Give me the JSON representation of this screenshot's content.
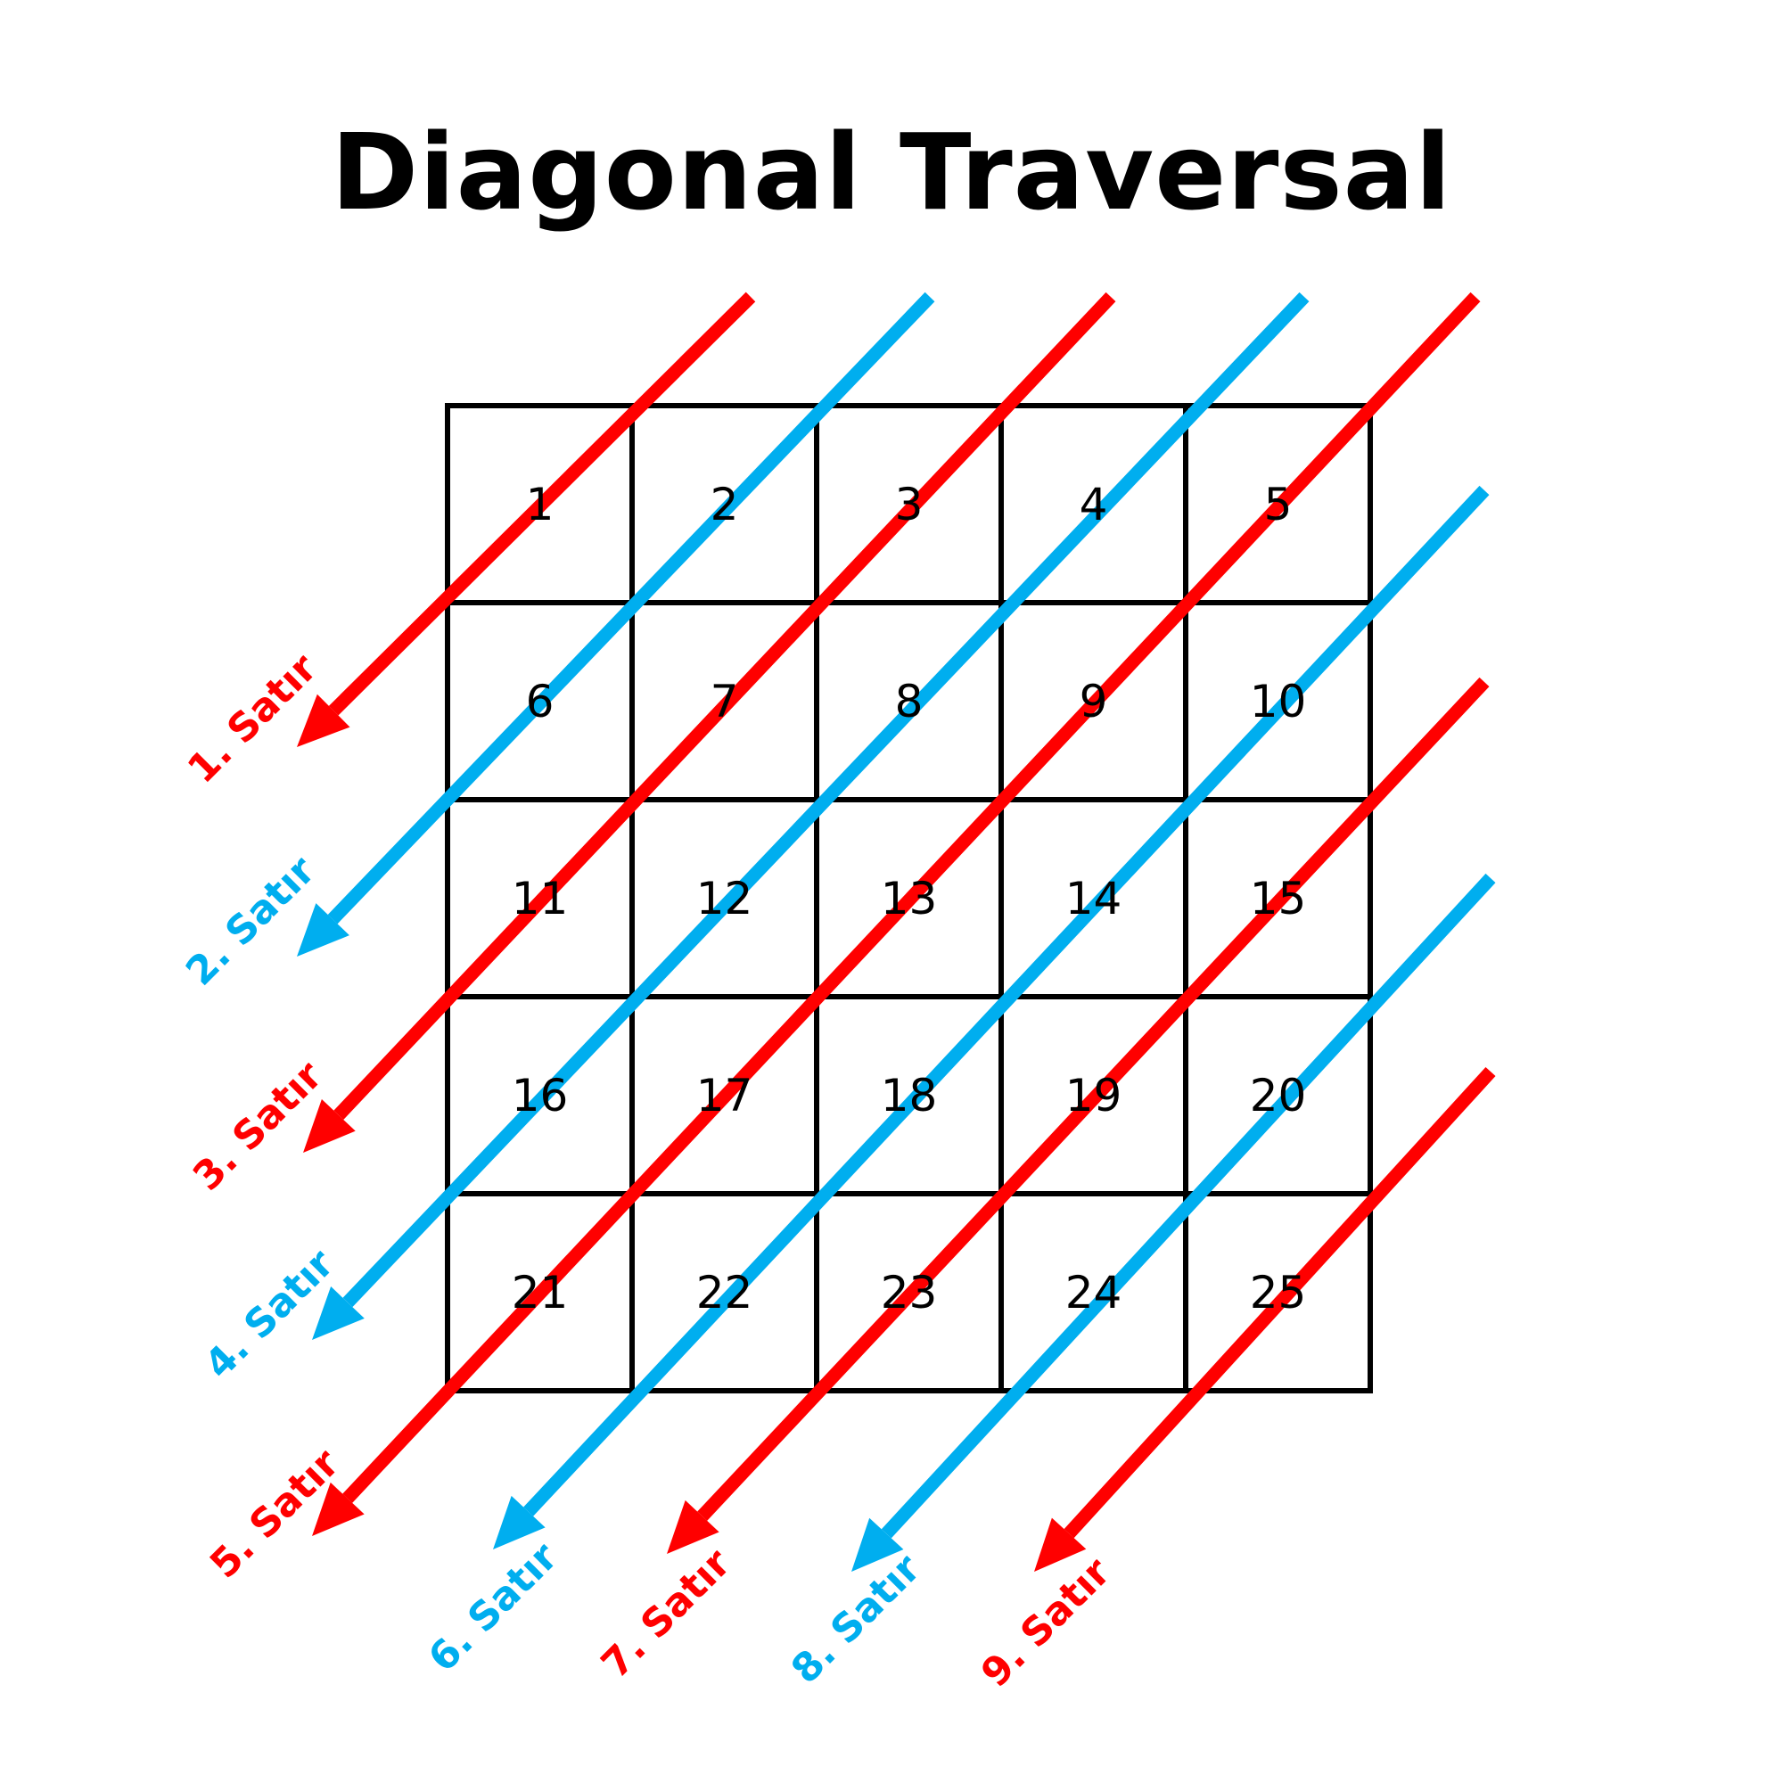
{
  "title": "Diagonal Traversal",
  "colors": {
    "red": "#ff0000",
    "blue": "#00aeef",
    "grid": "#000000"
  },
  "grid": {
    "rows": 5,
    "cols": 5,
    "cells": [
      "1",
      "2",
      "3",
      "4",
      "5",
      "6",
      "7",
      "8",
      "9",
      "10",
      "11",
      "12",
      "13",
      "14",
      "15",
      "16",
      "17",
      "18",
      "19",
      "20",
      "21",
      "22",
      "23",
      "24",
      "25"
    ]
  },
  "diagonals": [
    {
      "label": "1. Satır",
      "color": "red"
    },
    {
      "label": "2. Satır",
      "color": "blue"
    },
    {
      "label": "3. Satır",
      "color": "red"
    },
    {
      "label": "4. Satır",
      "color": "blue"
    },
    {
      "label": "5. Satır",
      "color": "red"
    },
    {
      "label": "6. Satır",
      "color": "blue"
    },
    {
      "label": "7. Satır",
      "color": "red"
    },
    {
      "label": "8. Satır",
      "color": "blue"
    },
    {
      "label": "9. Satır",
      "color": "red"
    }
  ]
}
